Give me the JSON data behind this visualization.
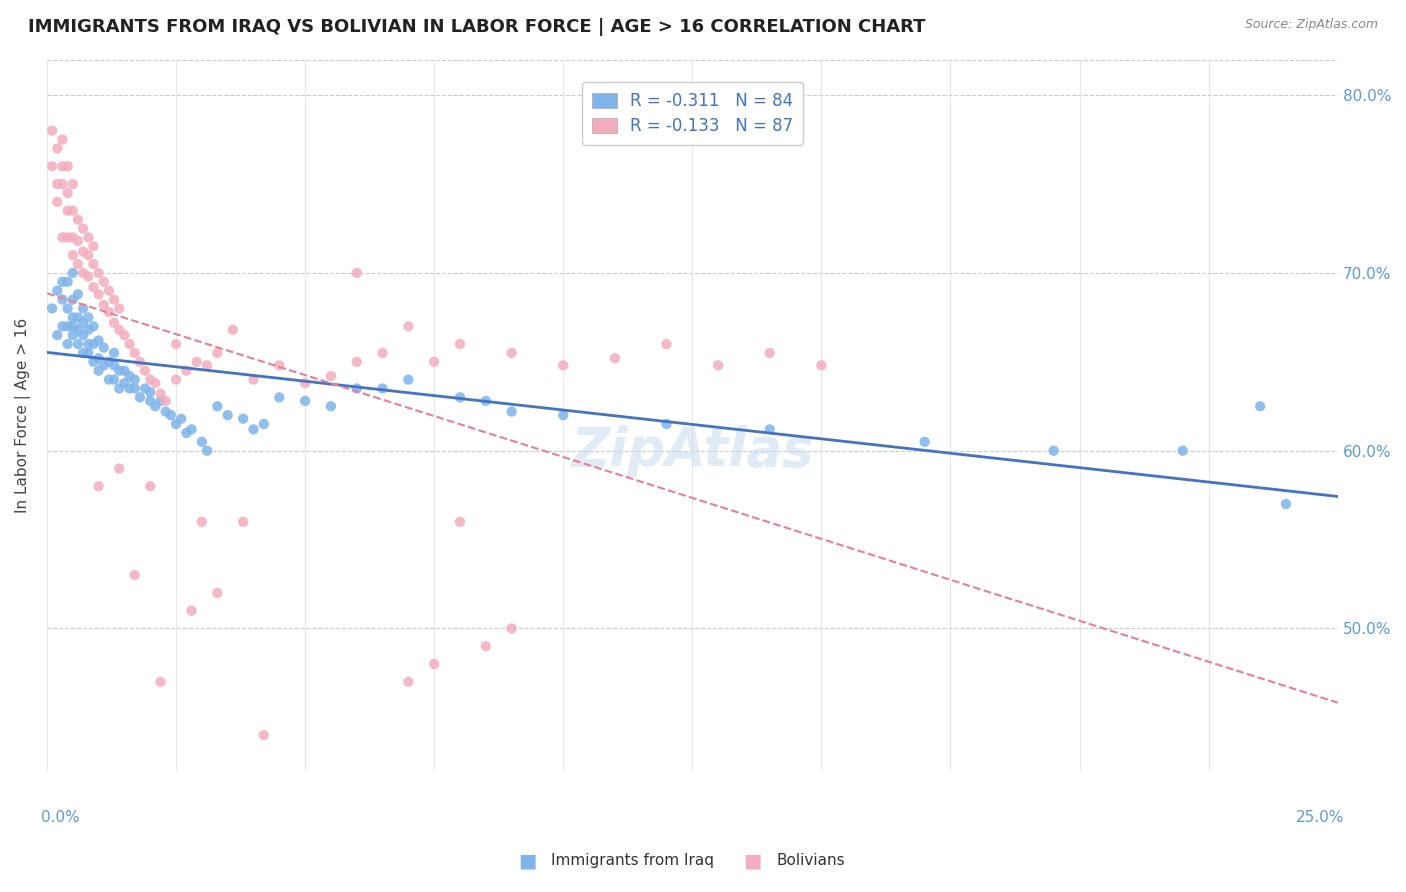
{
  "title": "IMMIGRANTS FROM IRAQ VS BOLIVIAN IN LABOR FORCE | AGE > 16 CORRELATION CHART",
  "source": "Source: ZipAtlas.com",
  "ylabel": "In Labor Force | Age > 16",
  "x_range": [
    0.0,
    0.25
  ],
  "y_range": [
    0.42,
    0.82
  ],
  "iraq_color": "#7EB4EA",
  "bolivia_color": "#F4ACBE",
  "iraq_line_color": "#4472C4",
  "bolivia_line_color": "#E97F96",
  "legend_iraq_r": "R = -0.311",
  "legend_iraq_n": "N = 84",
  "legend_bolivia_r": "R = -0.133",
  "legend_bolivia_n": "N = 87",
  "iraq_points_x": [
    0.001,
    0.002,
    0.002,
    0.003,
    0.003,
    0.003,
    0.004,
    0.004,
    0.004,
    0.004,
    0.005,
    0.005,
    0.005,
    0.005,
    0.005,
    0.006,
    0.006,
    0.006,
    0.006,
    0.007,
    0.007,
    0.007,
    0.007,
    0.008,
    0.008,
    0.008,
    0.008,
    0.009,
    0.009,
    0.009,
    0.01,
    0.01,
    0.01,
    0.011,
    0.011,
    0.012,
    0.012,
    0.013,
    0.013,
    0.013,
    0.014,
    0.014,
    0.015,
    0.015,
    0.016,
    0.016,
    0.017,
    0.017,
    0.018,
    0.019,
    0.02,
    0.02,
    0.021,
    0.022,
    0.023,
    0.024,
    0.025,
    0.026,
    0.027,
    0.028,
    0.03,
    0.031,
    0.033,
    0.035,
    0.038,
    0.04,
    0.042,
    0.045,
    0.05,
    0.055,
    0.06,
    0.065,
    0.07,
    0.08,
    0.085,
    0.09,
    0.1,
    0.12,
    0.14,
    0.17,
    0.195,
    0.22,
    0.235,
    0.24
  ],
  "iraq_points_y": [
    0.68,
    0.665,
    0.69,
    0.67,
    0.685,
    0.695,
    0.66,
    0.67,
    0.68,
    0.695,
    0.665,
    0.67,
    0.675,
    0.685,
    0.7,
    0.66,
    0.668,
    0.675,
    0.688,
    0.655,
    0.665,
    0.672,
    0.68,
    0.655,
    0.66,
    0.668,
    0.675,
    0.65,
    0.66,
    0.67,
    0.645,
    0.652,
    0.662,
    0.648,
    0.658,
    0.64,
    0.65,
    0.64,
    0.648,
    0.655,
    0.635,
    0.645,
    0.638,
    0.645,
    0.635,
    0.642,
    0.635,
    0.64,
    0.63,
    0.635,
    0.628,
    0.633,
    0.625,
    0.628,
    0.622,
    0.62,
    0.615,
    0.618,
    0.61,
    0.612,
    0.605,
    0.6,
    0.625,
    0.62,
    0.618,
    0.612,
    0.615,
    0.63,
    0.628,
    0.625,
    0.635,
    0.635,
    0.64,
    0.63,
    0.628,
    0.622,
    0.62,
    0.615,
    0.612,
    0.605,
    0.6,
    0.6,
    0.625,
    0.57
  ],
  "bolivia_points_x": [
    0.001,
    0.001,
    0.002,
    0.002,
    0.002,
    0.003,
    0.003,
    0.003,
    0.003,
    0.004,
    0.004,
    0.004,
    0.004,
    0.005,
    0.005,
    0.005,
    0.005,
    0.006,
    0.006,
    0.006,
    0.007,
    0.007,
    0.007,
    0.008,
    0.008,
    0.008,
    0.009,
    0.009,
    0.009,
    0.01,
    0.01,
    0.011,
    0.011,
    0.012,
    0.012,
    0.013,
    0.013,
    0.014,
    0.014,
    0.015,
    0.016,
    0.017,
    0.018,
    0.019,
    0.02,
    0.021,
    0.022,
    0.023,
    0.025,
    0.027,
    0.029,
    0.031,
    0.033,
    0.036,
    0.04,
    0.045,
    0.05,
    0.055,
    0.06,
    0.065,
    0.07,
    0.075,
    0.08,
    0.09,
    0.1,
    0.11,
    0.12,
    0.13,
    0.14,
    0.15,
    0.06,
    0.07,
    0.075,
    0.08,
    0.085,
    0.09,
    0.01,
    0.014,
    0.017,
    0.02,
    0.022,
    0.025,
    0.028,
    0.03,
    0.033,
    0.038,
    0.042
  ],
  "bolivia_points_y": [
    0.76,
    0.78,
    0.74,
    0.77,
    0.75,
    0.72,
    0.75,
    0.76,
    0.775,
    0.72,
    0.735,
    0.745,
    0.76,
    0.71,
    0.72,
    0.735,
    0.75,
    0.705,
    0.718,
    0.73,
    0.7,
    0.712,
    0.725,
    0.698,
    0.71,
    0.72,
    0.692,
    0.705,
    0.715,
    0.688,
    0.7,
    0.682,
    0.695,
    0.678,
    0.69,
    0.672,
    0.685,
    0.668,
    0.68,
    0.665,
    0.66,
    0.655,
    0.65,
    0.645,
    0.64,
    0.638,
    0.632,
    0.628,
    0.64,
    0.645,
    0.65,
    0.648,
    0.655,
    0.668,
    0.64,
    0.648,
    0.638,
    0.642,
    0.65,
    0.655,
    0.67,
    0.65,
    0.66,
    0.655,
    0.648,
    0.652,
    0.66,
    0.648,
    0.655,
    0.648,
    0.7,
    0.47,
    0.48,
    0.56,
    0.49,
    0.5,
    0.58,
    0.59,
    0.53,
    0.58,
    0.47,
    0.66,
    0.51,
    0.56,
    0.52,
    0.56,
    0.44
  ]
}
